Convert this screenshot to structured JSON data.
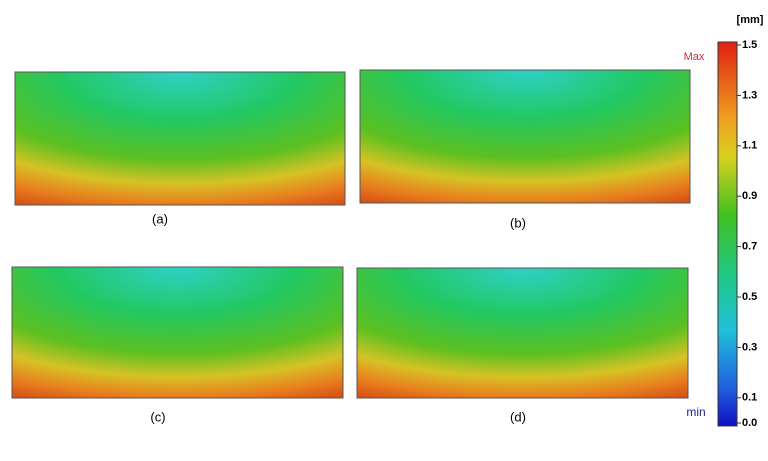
{
  "panels": [
    {
      "label": "(a)"
    },
    {
      "label": "(b)"
    },
    {
      "label": "(c)"
    },
    {
      "label": "(d)"
    }
  ],
  "colorbar": {
    "unit": "[mm]",
    "max_label": "Max",
    "min_label": "min",
    "ticks": [
      "1.5",
      "1.3",
      "1.1",
      "0.9",
      "0.7",
      "0.5",
      "0.3",
      "0.1",
      "0.0"
    ]
  }
}
